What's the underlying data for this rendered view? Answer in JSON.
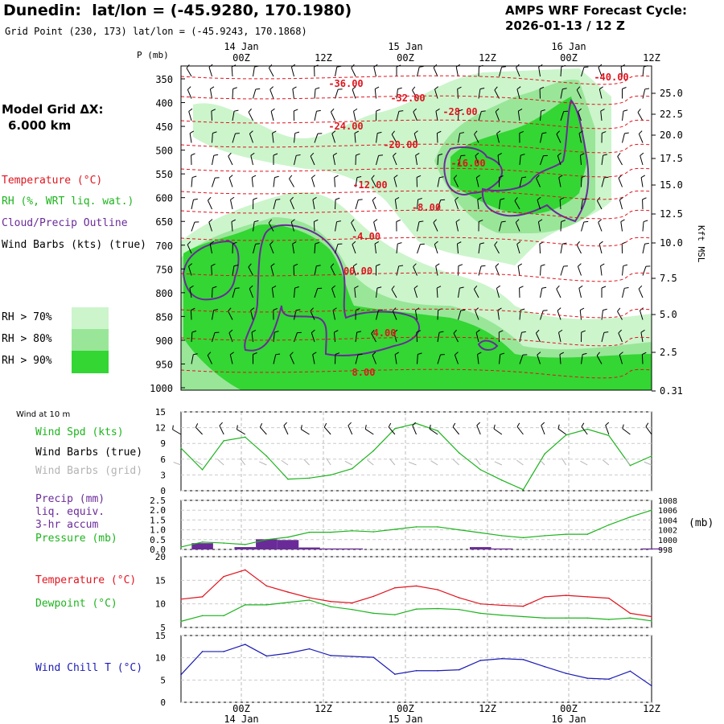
{
  "header": {
    "station": "Dunedin:",
    "latlon": "lat/lon = (-45.9280, 170.1980)",
    "grid_point": "Grid Point (230, 173) lat/lon = (-45.9243, 170.1868)",
    "cycle_label": "AMPS WRF Forecast Cycle:",
    "cycle_value": "2026-01-13 / 12  Z"
  },
  "sidebar": {
    "model_grid": "Model Grid ΔX:",
    "model_dx": "6.000 km",
    "legend_temperature": "Temperature (°C)",
    "legend_rh": "RH (%, WRT liq. wat.)",
    "legend_cloud": "Cloud/Precip Outline",
    "legend_barbs": "Wind Barbs (kts) (true)",
    "rh_levels": [
      {
        "label": "RH > 70%",
        "color": "#ccf5cc"
      },
      {
        "label": "RH > 80%",
        "color": "#99e699"
      },
      {
        "label": "RH > 90%",
        "color": "#33d633"
      }
    ]
  },
  "colors": {
    "temperature": "#e0141e",
    "rh_wind": "#1db41d",
    "cloud": "#6a2b99",
    "pressure_green": "#1db41d",
    "grid_barbs": "#b4b4b4",
    "windchill": "#1c1cb4"
  },
  "time_axis": {
    "top_dates": [
      "14 Jan",
      "15 Jan",
      "16 Jan"
    ],
    "ticks": [
      "00Z",
      "12Z",
      "00Z",
      "12Z",
      "00Z",
      "12Z"
    ],
    "bottom_dates": [
      "14 Jan",
      "15 Jan",
      "16 Jan"
    ]
  },
  "chart_data": [
    {
      "type": "heatmap",
      "title": "",
      "ylabel_left": "P (mb)",
      "ylabel_right": "Kft MSL",
      "pressure_ticks": [
        350,
        400,
        450,
        500,
        550,
        600,
        650,
        700,
        750,
        800,
        850,
        900,
        950,
        1000
      ],
      "height_ticks": [
        "25.0",
        "22.5",
        "20.0",
        "17.5",
        "15.0",
        "12.5",
        "10.0",
        "7.5",
        "5.0",
        "2.5",
        "0.31"
      ],
      "temperature_contours": [
        "-36.00",
        "-32.00",
        "-28.00",
        "-24.00",
        "-20.00",
        "-16.00",
        "-12.00",
        "-8.00",
        "-4.00",
        "00.00",
        "4.00",
        "8.00",
        "-40.00"
      ]
    },
    {
      "type": "line",
      "title": "Wind at 10 m",
      "series": [
        {
          "name": "Wind Spd (kts)",
          "values": [
            8.1,
            4.0,
            9.5,
            10.2,
            6.6,
            2.2,
            2.4,
            3.0,
            4.2,
            7.6,
            11.8,
            12.8,
            11.4,
            7.2,
            4.0,
            2.0,
            0.2,
            7.0,
            10.6,
            11.7,
            10.5,
            4.8,
            6.6
          ]
        }
      ],
      "label_barbs_true": "Wind Barbs (true)",
      "label_barbs_grid": "Wind Barbs (grid)",
      "ylim": [
        0,
        15
      ],
      "yticks": [
        0,
        3,
        6,
        9,
        12,
        15
      ]
    },
    {
      "type": "bar",
      "title": "",
      "label_precip": "Precip (mm)",
      "label_liq": "liq. equiv.",
      "label_accum": "3-hr accum",
      "label_pressure": "Pressure (mb)",
      "label_mb": "(mb)",
      "precip_values": [
        0.0,
        0.32,
        0.0,
        0.12,
        0.52,
        0.48,
        0.1,
        0.05,
        0.05,
        0.0,
        0.0,
        0.0,
        0.0,
        0.0,
        0.12,
        0.05,
        0.0,
        0.0,
        0.0,
        0.0,
        0.0,
        0.0,
        0.05
      ],
      "pressure_values": [
        998.5,
        999.5,
        999.3,
        999.0,
        1000.0,
        1000.5,
        1001.5,
        1001.5,
        1001.8,
        1001.6,
        1002.1,
        1002.6,
        1002.6,
        1002.0,
        1001.4,
        1000.8,
        1000.4,
        1000.8,
        1001.1,
        1001.1,
        1003.0,
        1004.6,
        1006.0
      ],
      "ylim_precip": [
        0,
        2.5
      ],
      "yticks_precip": [
        "0.0",
        "0.5",
        "1.0",
        "1.5",
        "2.0",
        "2.5"
      ],
      "ylim_pressure": [
        998,
        1008
      ],
      "yticks_pressure": [
        "998",
        "1000",
        "1002",
        "1004",
        "1006",
        "1008"
      ]
    },
    {
      "type": "line",
      "title": "",
      "series": [
        {
          "name": "Temperature (°C)",
          "values": [
            11.0,
            11.5,
            15.8,
            17.2,
            13.8,
            12.5,
            11.3,
            10.5,
            10.2,
            11.6,
            13.4,
            13.8,
            13.0,
            11.3,
            10.0,
            9.7,
            9.5,
            11.5,
            11.8,
            11.5,
            11.2,
            8.0,
            7.3
          ]
        },
        {
          "name": "Dewpoint (°C)",
          "values": [
            6.3,
            7.5,
            7.5,
            9.8,
            9.8,
            10.3,
            10.8,
            9.4,
            8.8,
            8.0,
            7.7,
            8.9,
            9.0,
            8.8,
            8.0,
            7.6,
            7.3,
            7.0,
            7.0,
            7.0,
            6.7,
            7.0,
            6.4
          ]
        }
      ],
      "ylim": [
        5,
        20
      ],
      "yticks": [
        5,
        10,
        15,
        20
      ]
    },
    {
      "type": "line",
      "title": "",
      "series": [
        {
          "name": "Wind Chill T (°C)",
          "values": [
            6.2,
            11.4,
            11.4,
            13.0,
            10.4,
            11.0,
            12.0,
            10.5,
            10.3,
            10.1,
            6.3,
            7.1,
            7.1,
            7.3,
            9.4,
            9.8,
            9.6,
            8.0,
            6.5,
            5.4,
            5.2,
            7.0,
            3.7
          ]
        }
      ],
      "ylim": [
        0,
        15
      ],
      "yticks": [
        0,
        5,
        10,
        15
      ]
    }
  ]
}
